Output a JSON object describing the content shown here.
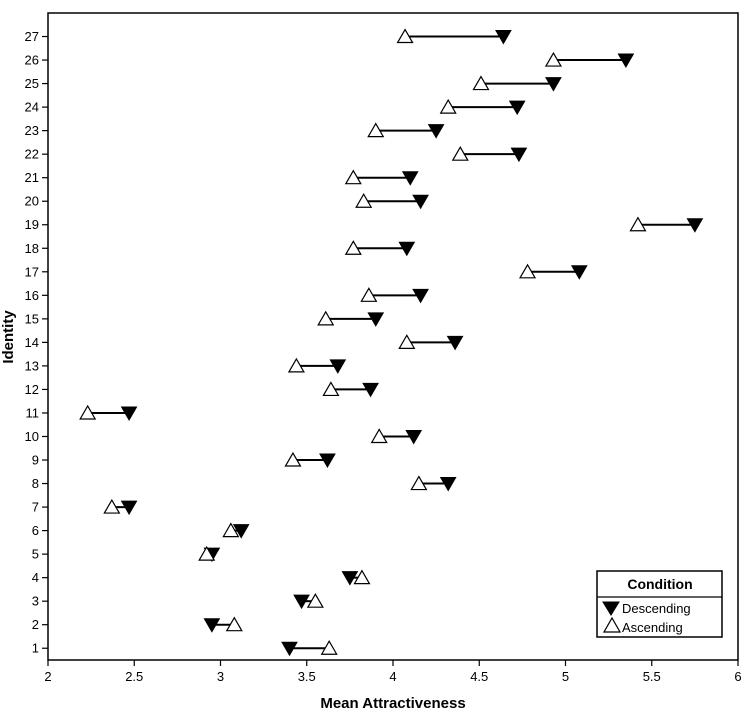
{
  "chart_data": {
    "type": "scatter",
    "title": "",
    "xlabel": "Mean Attractiveness",
    "ylabel": "Identity",
    "xlim": [
      2,
      6
    ],
    "ylim": [
      0.5,
      28
    ],
    "xticks": [
      2,
      2.5,
      3,
      3.5,
      4,
      4.5,
      5,
      5.5,
      6
    ],
    "xtick_labels": [
      "2",
      "2.5",
      "3",
      "3.5",
      "4",
      "4.5",
      "5",
      "5.5",
      "6"
    ],
    "yticks": [
      1,
      2,
      3,
      4,
      5,
      6,
      7,
      8,
      9,
      10,
      11,
      12,
      13,
      14,
      15,
      16,
      17,
      18,
      19,
      20,
      21,
      22,
      23,
      24,
      25,
      26,
      27
    ],
    "ytick_labels": [
      "1",
      "2",
      "3",
      "4",
      "5",
      "6",
      "7",
      "8",
      "9",
      "10",
      "11",
      "12",
      "13",
      "14",
      "15",
      "16",
      "17",
      "18",
      "19",
      "20",
      "21",
      "22",
      "23",
      "24",
      "25",
      "26",
      "27"
    ],
    "grid": false,
    "legend": {
      "title": "Condition",
      "placement": "bottom-right",
      "entries": [
        "Descending",
        "Ascending"
      ]
    },
    "series": [
      {
        "name": "Descending",
        "marker": "filled-down-triangle",
        "color": "#000000",
        "points": [
          {
            "x": 3.4,
            "y": 1
          },
          {
            "x": 2.95,
            "y": 2
          },
          {
            "x": 3.47,
            "y": 3
          },
          {
            "x": 3.75,
            "y": 4
          },
          {
            "x": 2.95,
            "y": 5
          },
          {
            "x": 3.12,
            "y": 6
          },
          {
            "x": 2.47,
            "y": 7
          },
          {
            "x": 4.32,
            "y": 8
          },
          {
            "x": 3.62,
            "y": 9
          },
          {
            "x": 4.12,
            "y": 10
          },
          {
            "x": 2.47,
            "y": 11
          },
          {
            "x": 3.87,
            "y": 12
          },
          {
            "x": 3.68,
            "y": 13
          },
          {
            "x": 4.36,
            "y": 14
          },
          {
            "x": 3.9,
            "y": 15
          },
          {
            "x": 4.16,
            "y": 16
          },
          {
            "x": 5.08,
            "y": 17
          },
          {
            "x": 4.08,
            "y": 18
          },
          {
            "x": 5.75,
            "y": 19
          },
          {
            "x": 4.16,
            "y": 20
          },
          {
            "x": 4.1,
            "y": 21
          },
          {
            "x": 4.73,
            "y": 22
          },
          {
            "x": 4.25,
            "y": 23
          },
          {
            "x": 4.72,
            "y": 24
          },
          {
            "x": 4.93,
            "y": 25
          },
          {
            "x": 5.35,
            "y": 26
          },
          {
            "x": 4.64,
            "y": 27
          }
        ]
      },
      {
        "name": "Ascending",
        "marker": "open-up-triangle",
        "color": "#000000",
        "points": [
          {
            "x": 3.63,
            "y": 1
          },
          {
            "x": 3.08,
            "y": 2
          },
          {
            "x": 3.55,
            "y": 3
          },
          {
            "x": 3.82,
            "y": 4
          },
          {
            "x": 2.92,
            "y": 5
          },
          {
            "x": 3.06,
            "y": 6
          },
          {
            "x": 2.37,
            "y": 7
          },
          {
            "x": 4.15,
            "y": 8
          },
          {
            "x": 3.42,
            "y": 9
          },
          {
            "x": 3.92,
            "y": 10
          },
          {
            "x": 2.23,
            "y": 11
          },
          {
            "x": 3.64,
            "y": 12
          },
          {
            "x": 3.44,
            "y": 13
          },
          {
            "x": 4.08,
            "y": 14
          },
          {
            "x": 3.61,
            "y": 15
          },
          {
            "x": 3.86,
            "y": 16
          },
          {
            "x": 4.78,
            "y": 17
          },
          {
            "x": 3.77,
            "y": 18
          },
          {
            "x": 5.42,
            "y": 19
          },
          {
            "x": 3.83,
            "y": 20
          },
          {
            "x": 3.77,
            "y": 21
          },
          {
            "x": 4.39,
            "y": 22
          },
          {
            "x": 3.9,
            "y": 23
          },
          {
            "x": 4.32,
            "y": 24
          },
          {
            "x": 4.51,
            "y": 25
          },
          {
            "x": 4.93,
            "y": 26
          },
          {
            "x": 4.07,
            "y": 27
          }
        ]
      }
    ]
  }
}
